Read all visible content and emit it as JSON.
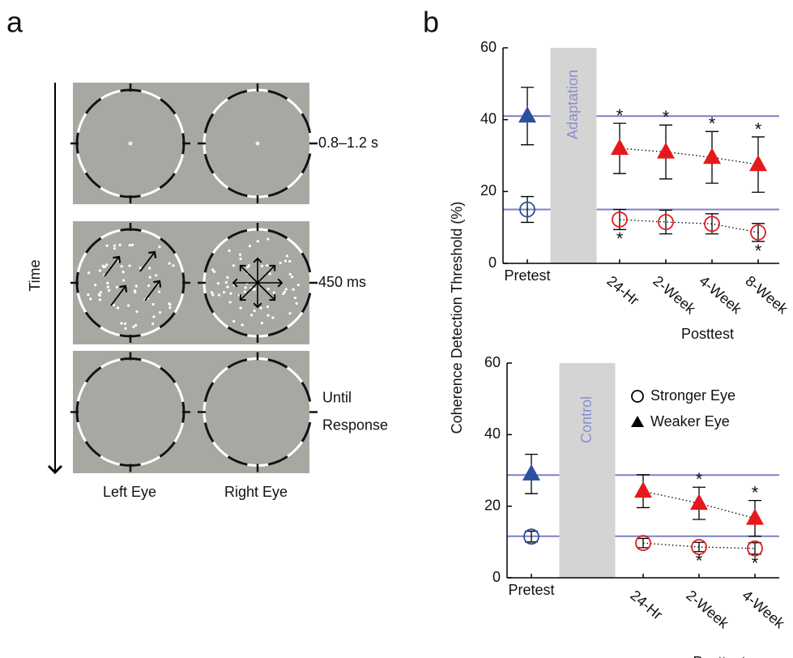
{
  "panel_labels": [
    "a",
    "b"
  ],
  "panel_a": {
    "time_label": "Time",
    "rows": [
      {
        "label": [
          "0.8–1.2 s"
        ]
      },
      {
        "label": [
          "450 ms"
        ]
      },
      {
        "label": [
          "Until",
          "Response"
        ]
      }
    ],
    "columns": [
      "Left Eye",
      "Right Eye"
    ]
  },
  "y_label": "Coherence Detection Threshold (%)",
  "chart_data": [
    {
      "type": "errorbar",
      "categories": [
        "Pretest",
        "24-Hr",
        "2-Week",
        "4-Week",
        "8-Week"
      ],
      "x_label": "Posttest",
      "band_label": "Adaptation",
      "band_color": "#d4d4d4",
      "band_text_color": "#8a8ed2",
      "ylim": [
        0,
        60
      ],
      "yticks": [
        0,
        20,
        40,
        60
      ],
      "hlines": [
        41,
        15
      ],
      "hline_color": "#7b80c8",
      "series": [
        {
          "marker": "circle",
          "values": [
            15,
            12.2,
            11.5,
            11,
            8.6
          ],
          "errors": [
            3.6,
            2.8,
            3.3,
            2.8,
            2.5
          ],
          "colors": [
            "#2c4f9e",
            "#e5191c",
            "#e5191c",
            "#e5191c",
            "#e5191c"
          ],
          "significance": [
            null,
            "*",
            null,
            null,
            "*"
          ]
        },
        {
          "marker": "triangle",
          "values": [
            41,
            32,
            31,
            29.5,
            27.5
          ],
          "errors": [
            8,
            7,
            7.5,
            7.2,
            7.7
          ],
          "colors": [
            "#2c4f9e",
            "#e5191c",
            "#e5191c",
            "#e5191c",
            "#e5191c"
          ],
          "significance": [
            null,
            "*",
            "*",
            "*",
            "*"
          ]
        }
      ]
    },
    {
      "type": "errorbar",
      "categories": [
        "Pretest",
        "24-Hr",
        "2-Week",
        "4-Week"
      ],
      "x_label": "Posttest",
      "band_label": "Control",
      "band_color": "#d4d4d4",
      "band_text_color": "#8a8ed2",
      "ylim": [
        0,
        60
      ],
      "yticks": [
        0,
        20,
        40,
        60
      ],
      "hlines": [
        28.7,
        11.6
      ],
      "hline_color": "#7b80c8",
      "legend": "upper right",
      "series": [
        {
          "name": "Stronger Eye",
          "marker": "circle",
          "values": [
            11.5,
            9.7,
            8.6,
            8.2
          ],
          "errors": [
            1.5,
            1.3,
            1.3,
            1.6
          ],
          "colors": [
            "#2c4f9e",
            "#e5191c",
            "#e5191c",
            "#e5191c"
          ],
          "significance": [
            null,
            null,
            "*",
            "*"
          ]
        },
        {
          "name": "Weaker Eye",
          "marker": "triangle",
          "values": [
            29,
            24.2,
            20.8,
            16.6
          ],
          "errors": [
            5.5,
            4.6,
            4.5,
            5
          ],
          "colors": [
            "#2c4f9e",
            "#e5191c",
            "#e5191c",
            "#e5191c"
          ],
          "significance": [
            null,
            null,
            "*",
            "*"
          ]
        }
      ]
    }
  ]
}
